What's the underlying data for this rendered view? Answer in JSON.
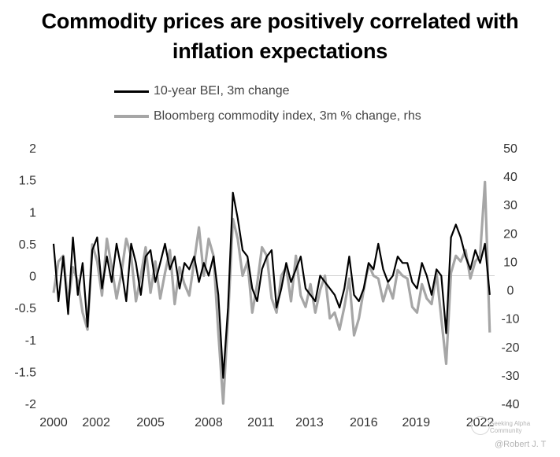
{
  "title_line1": "Commodity prices are positively correlated with",
  "title_line2": "inflation expectations",
  "chart_data": {
    "type": "line",
    "title": "Commodity prices are positively correlated with inflation expectations",
    "x_range": [
      2000,
      2022.75
    ],
    "x_ticks": [
      "2000",
      "2002",
      "2005",
      "2008",
      "2011",
      "2013",
      "2016",
      "2019",
      "2022"
    ],
    "x_tick_values": [
      2000,
      2002.2,
      2005,
      2008,
      2010.7,
      2013.2,
      2016,
      2018.7,
      2022
    ],
    "ylim_left": [
      -2,
      2
    ],
    "y_ticks_left": [
      "2",
      "1.5",
      "1",
      "0.5",
      "0",
      "-0.5",
      "-1",
      "-1.5",
      "-2"
    ],
    "ylim_right": [
      -40,
      50
    ],
    "y_ticks_right": [
      "50",
      "40",
      "30",
      "20",
      "10",
      "0",
      "-10",
      "-20",
      "-30",
      "-40"
    ],
    "series": [
      {
        "name": "10-year BEI, 3m change",
        "axis": "left",
        "color": "#000000",
        "x": [
          2000.0,
          2000.25,
          2000.5,
          2000.75,
          2001.0,
          2001.25,
          2001.5,
          2001.75,
          2002.0,
          2002.25,
          2002.5,
          2002.75,
          2003.0,
          2003.25,
          2003.5,
          2003.75,
          2004.0,
          2004.25,
          2004.5,
          2004.75,
          2005.0,
          2005.25,
          2005.5,
          2005.75,
          2006.0,
          2006.25,
          2006.5,
          2006.75,
          2007.0,
          2007.25,
          2007.5,
          2007.75,
          2008.0,
          2008.25,
          2008.5,
          2008.75,
          2009.0,
          2009.25,
          2009.5,
          2009.75,
          2010.0,
          2010.25,
          2010.5,
          2010.75,
          2011.0,
          2011.25,
          2011.5,
          2011.75,
          2012.0,
          2012.25,
          2012.5,
          2012.75,
          2013.0,
          2013.25,
          2013.5,
          2013.75,
          2014.0,
          2014.25,
          2014.5,
          2014.75,
          2015.0,
          2015.25,
          2015.5,
          2015.75,
          2016.0,
          2016.25,
          2016.5,
          2016.75,
          2017.0,
          2017.25,
          2017.5,
          2017.75,
          2018.0,
          2018.25,
          2018.5,
          2018.75,
          2019.0,
          2019.25,
          2019.5,
          2019.75,
          2020.0,
          2020.25,
          2020.5,
          2020.75,
          2021.0,
          2021.25,
          2021.5,
          2021.75,
          2022.0,
          2022.25,
          2022.5
        ],
        "values": [
          0.5,
          -0.4,
          0.3,
          -0.6,
          0.6,
          -0.3,
          0.2,
          -0.8,
          0.4,
          0.6,
          -0.2,
          0.3,
          -0.1,
          0.5,
          0.1,
          -0.4,
          0.5,
          0.2,
          -0.3,
          0.3,
          0.4,
          -0.1,
          0.2,
          0.5,
          0.1,
          0.3,
          -0.2,
          0.2,
          0.1,
          0.3,
          -0.1,
          0.2,
          0.0,
          0.3,
          -0.3,
          -1.6,
          -0.5,
          1.3,
          0.9,
          0.4,
          0.3,
          -0.2,
          -0.4,
          0.1,
          0.3,
          0.4,
          -0.5,
          -0.2,
          0.2,
          -0.1,
          0.1,
          0.3,
          -0.2,
          -0.3,
          -0.4,
          0.0,
          -0.1,
          -0.2,
          -0.3,
          -0.5,
          -0.2,
          0.3,
          -0.3,
          -0.4,
          -0.2,
          0.2,
          0.1,
          0.5,
          0.1,
          -0.1,
          0.0,
          0.3,
          0.2,
          0.2,
          -0.1,
          -0.2,
          0.2,
          0.0,
          -0.3,
          0.1,
          0.0,
          -0.9,
          0.6,
          0.8,
          0.6,
          0.3,
          0.1,
          0.4,
          0.2,
          0.5,
          -0.3
        ]
      },
      {
        "name": "Bloomberg commodity index, 3m % change, rhs",
        "axis": "right",
        "color": "#a6a6a6",
        "x": [
          2000.0,
          2000.25,
          2000.5,
          2000.75,
          2001.0,
          2001.25,
          2001.5,
          2001.75,
          2002.0,
          2002.25,
          2002.5,
          2002.75,
          2003.0,
          2003.25,
          2003.5,
          2003.75,
          2004.0,
          2004.25,
          2004.5,
          2004.75,
          2005.0,
          2005.25,
          2005.5,
          2005.75,
          2006.0,
          2006.25,
          2006.5,
          2006.75,
          2007.0,
          2007.25,
          2007.5,
          2007.75,
          2008.0,
          2008.25,
          2008.5,
          2008.75,
          2009.0,
          2009.25,
          2009.5,
          2009.75,
          2010.0,
          2010.25,
          2010.5,
          2010.75,
          2011.0,
          2011.25,
          2011.5,
          2011.75,
          2012.0,
          2012.25,
          2012.5,
          2012.75,
          2013.0,
          2013.25,
          2013.5,
          2013.75,
          2014.0,
          2014.25,
          2014.5,
          2014.75,
          2015.0,
          2015.25,
          2015.5,
          2015.75,
          2016.0,
          2016.25,
          2016.5,
          2016.75,
          2017.0,
          2017.25,
          2017.5,
          2017.75,
          2018.0,
          2018.25,
          2018.5,
          2018.75,
          2019.0,
          2019.25,
          2019.5,
          2019.75,
          2020.0,
          2020.25,
          2020.5,
          2020.75,
          2021.0,
          2021.25,
          2021.5,
          2021.75,
          2022.0,
          2022.25,
          2022.5
        ],
        "values": [
          -1,
          10,
          12,
          -5,
          8,
          3,
          -8,
          -14,
          16,
          10,
          -2,
          18,
          8,
          -3,
          6,
          18,
          12,
          -4,
          5,
          15,
          -1,
          10,
          -3,
          6,
          14,
          -5,
          8,
          2,
          -2,
          10,
          22,
          5,
          18,
          12,
          -15,
          -40,
          -10,
          25,
          18,
          5,
          10,
          -8,
          2,
          15,
          12,
          -3,
          -8,
          5,
          8,
          -4,
          12,
          -2,
          -6,
          2,
          -8,
          0,
          5,
          -10,
          -8,
          -14,
          -6,
          4,
          -16,
          -10,
          0,
          9,
          5,
          4,
          -4,
          2,
          -3,
          7,
          5,
          4,
          -6,
          -8,
          2,
          -3,
          -5,
          6,
          -10,
          -26,
          6,
          12,
          10,
          14,
          4,
          10,
          12,
          38,
          -15
        ]
      }
    ]
  },
  "watermark": {
    "line1": "Seeking Alpha Community",
    "line2": "@Robert J. T"
  }
}
